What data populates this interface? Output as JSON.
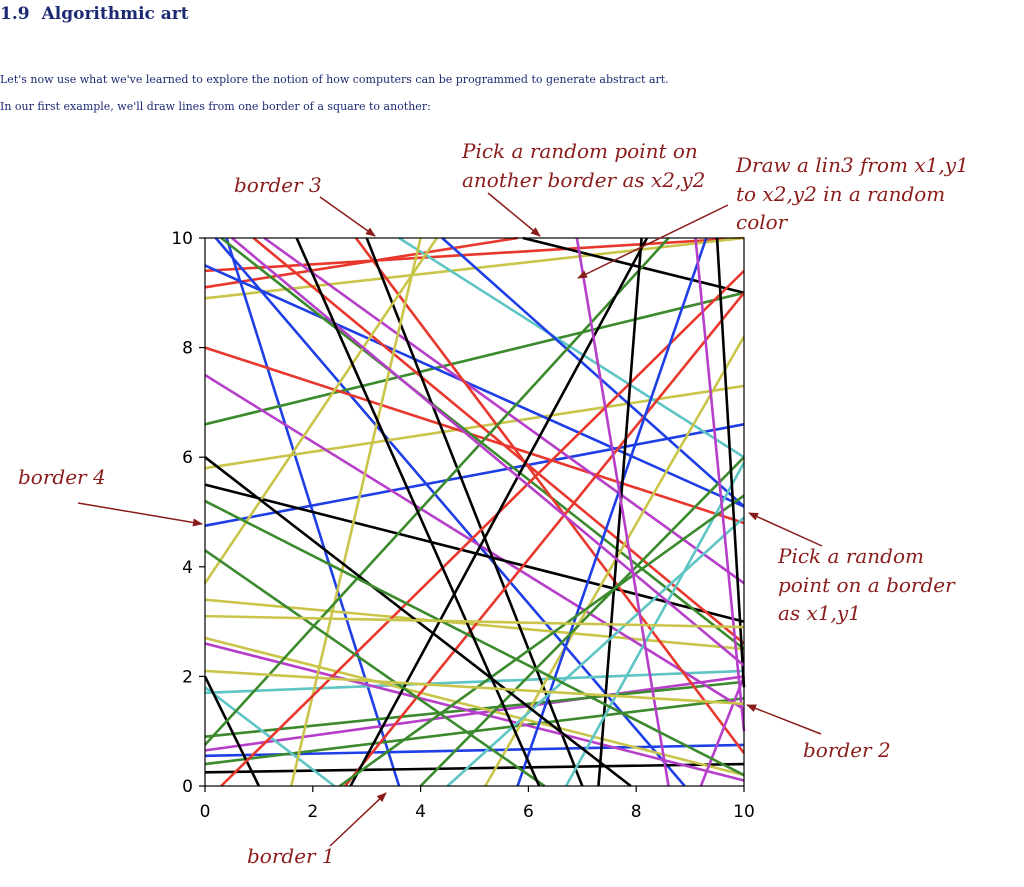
{
  "section": {
    "number": "1.9",
    "title": "Algorithmic art"
  },
  "paragraphs": [
    "Let's now use what we've learned to explore the notion of how computers can be programmed to generate abstract art.",
    "In our first example, we'll draw lines from one border of a square to another:"
  ],
  "annotations": {
    "border1": "border 1",
    "border2": "border 2",
    "border3": "border 3",
    "border4": "border 4",
    "pick_first": [
      "Pick a random",
      "point on a border",
      "as x1,y1"
    ],
    "pick_second": [
      "Pick a random point on",
      "another border as x2,y2"
    ],
    "draw_line": [
      "Draw a lin3 from x1,y1",
      "to x2,y2 in a random",
      "color"
    ]
  },
  "colors": {
    "text": "#1d2a73",
    "annotation": "#8a1c1c",
    "line_palette": {
      "r": "#e8382d",
      "g": "#3c8a2e",
      "b": "#1f3fe6",
      "k": "#000000",
      "m": "#b63fc9",
      "c": "#5ec4c4",
      "y": "#c9c54a"
    }
  },
  "chart_data": {
    "type": "line",
    "xlim": [
      0,
      10
    ],
    "ylim": [
      0,
      10
    ],
    "xticks": [
      "0",
      "2",
      "4",
      "6",
      "8",
      "10"
    ],
    "yticks": [
      "0",
      "2",
      "4",
      "6",
      "8",
      "10"
    ],
    "grid": false,
    "segments": [
      {
        "x1": 0,
        "y1": 9.4,
        "x2": 10,
        "y2": 10,
        "color": "r"
      },
      {
        "x1": 0,
        "y1": 9.1,
        "x2": 5.8,
        "y2": 10,
        "color": "r"
      },
      {
        "x1": 0,
        "y1": 8.9,
        "x2": 10,
        "y2": 10,
        "color": "y"
      },
      {
        "x1": 0.4,
        "y1": 10,
        "x2": 3.6,
        "y2": 0,
        "color": "b"
      },
      {
        "x1": 0.2,
        "y1": 10,
        "x2": 8.9,
        "y2": 0,
        "color": "b"
      },
      {
        "x1": 0,
        "y1": 4.75,
        "x2": 10,
        "y2": 6.6,
        "color": "b"
      },
      {
        "x1": 0,
        "y1": 0.25,
        "x2": 10,
        "y2": 0.4,
        "color": "k"
      },
      {
        "x1": 0,
        "y1": 0.55,
        "x2": 10,
        "y2": 0.75,
        "color": "b"
      },
      {
        "x1": 0,
        "y1": 0.65,
        "x2": 10,
        "y2": 2.0,
        "color": "m"
      },
      {
        "x1": 0,
        "y1": 1.7,
        "x2": 10,
        "y2": 2.1,
        "color": "c"
      },
      {
        "x1": 0,
        "y1": 0.9,
        "x2": 10,
        "y2": 1.9,
        "color": "g"
      },
      {
        "x1": 0,
        "y1": 0.4,
        "x2": 10,
        "y2": 1.6,
        "color": "g"
      },
      {
        "x1": 0,
        "y1": 5.8,
        "x2": 10,
        "y2": 7.3,
        "color": "y"
      },
      {
        "x1": 0,
        "y1": 6.6,
        "x2": 10,
        "y2": 9.0,
        "color": "g"
      },
      {
        "x1": 0,
        "y1": 3.4,
        "x2": 10,
        "y2": 2.5,
        "color": "y"
      },
      {
        "x1": 0,
        "y1": 8.0,
        "x2": 10,
        "y2": 4.8,
        "color": "r"
      },
      {
        "x1": 0,
        "y1": 9.5,
        "x2": 10,
        "y2": 5.1,
        "color": "b"
      },
      {
        "x1": 0,
        "y1": 7.5,
        "x2": 10,
        "y2": 1.4,
        "color": "m"
      },
      {
        "x1": 0,
        "y1": 2.7,
        "x2": 10,
        "y2": 0.2,
        "color": "y"
      },
      {
        "x1": 0,
        "y1": 5.5,
        "x2": 10,
        "y2": 3.0,
        "color": "k"
      },
      {
        "x1": 0.3,
        "y1": 10,
        "x2": 10,
        "y2": 2.5,
        "color": "g"
      },
      {
        "x1": 0.9,
        "y1": 10,
        "x2": 10,
        "y2": 2.6,
        "color": "r"
      },
      {
        "x1": 1.1,
        "y1": 10,
        "x2": 10,
        "y2": 3.7,
        "color": "m"
      },
      {
        "x1": 2.8,
        "y1": 10,
        "x2": 10,
        "y2": 0.6,
        "color": "r"
      },
      {
        "x1": 3.0,
        "y1": 10,
        "x2": 7.0,
        "y2": 0,
        "color": "k"
      },
      {
        "x1": 3.6,
        "y1": 10,
        "x2": 10,
        "y2": 6.0,
        "color": "c"
      },
      {
        "x1": 5.9,
        "y1": 10,
        "x2": 10,
        "y2": 9.0,
        "color": "k"
      },
      {
        "x1": 4.4,
        "y1": 10,
        "x2": 10,
        "y2": 5.1,
        "color": "b"
      },
      {
        "x1": 0,
        "y1": 2.6,
        "x2": 10,
        "y2": 0.1,
        "color": "m"
      },
      {
        "x1": 0,
        "y1": 1.8,
        "x2": 2.4,
        "y2": 0,
        "color": "c"
      },
      {
        "x1": 1.0,
        "y1": 0,
        "x2": 0,
        "y2": 2.0,
        "color": "k"
      },
      {
        "x1": 0,
        "y1": 3.7,
        "x2": 4.3,
        "y2": 10,
        "color": "y"
      },
      {
        "x1": 1.6,
        "y1": 0,
        "x2": 4.0,
        "y2": 10,
        "color": "y"
      },
      {
        "x1": 2.6,
        "y1": 0,
        "x2": 10,
        "y2": 9.0,
        "color": "r"
      },
      {
        "x1": 0.3,
        "y1": 0,
        "x2": 10,
        "y2": 9.4,
        "color": "r"
      },
      {
        "x1": 0,
        "y1": 0.75,
        "x2": 8.6,
        "y2": 10,
        "color": "g"
      },
      {
        "x1": 2.7,
        "y1": 0,
        "x2": 8.2,
        "y2": 10,
        "color": "k"
      },
      {
        "x1": 5.2,
        "y1": 0,
        "x2": 10,
        "y2": 8.2,
        "color": "y"
      },
      {
        "x1": 5.8,
        "y1": 0,
        "x2": 9.3,
        "y2": 10,
        "color": "b"
      },
      {
        "x1": 7.3,
        "y1": 0,
        "x2": 8.1,
        "y2": 10,
        "color": "k"
      },
      {
        "x1": 6.7,
        "y1": 0,
        "x2": 10,
        "y2": 5.9,
        "color": "c"
      },
      {
        "x1": 4.5,
        "y1": 0,
        "x2": 10,
        "y2": 4.9,
        "color": "c"
      },
      {
        "x1": 4.0,
        "y1": 0,
        "x2": 10,
        "y2": 6.0,
        "color": "g"
      },
      {
        "x1": 2.5,
        "y1": 0,
        "x2": 10,
        "y2": 5.3,
        "color": "g"
      },
      {
        "x1": 9.2,
        "y1": 0,
        "x2": 10,
        "y2": 2.0,
        "color": "m"
      },
      {
        "x1": 8.6,
        "y1": 0,
        "x2": 6.9,
        "y2": 10,
        "color": "m"
      },
      {
        "x1": 10,
        "y1": 1.0,
        "x2": 9.1,
        "y2": 10,
        "color": "m"
      },
      {
        "x1": 10,
        "y1": 1.8,
        "x2": 9.5,
        "y2": 10,
        "color": "k"
      },
      {
        "x1": 0,
        "y1": 6.0,
        "x2": 7.9,
        "y2": 0,
        "color": "k"
      },
      {
        "x1": 0,
        "y1": 5.2,
        "x2": 10,
        "y2": 0.2,
        "color": "g"
      },
      {
        "x1": 0,
        "y1": 4.3,
        "x2": 6.3,
        "y2": 0,
        "color": "g"
      },
      {
        "x1": 0.5,
        "y1": 10,
        "x2": 10,
        "y2": 2.2,
        "color": "m"
      },
      {
        "x1": 1.7,
        "y1": 10,
        "x2": 6.2,
        "y2": 0,
        "color": "k"
      },
      {
        "x1": 0,
        "y1": 2.1,
        "x2": 10,
        "y2": 1.5,
        "color": "y"
      },
      {
        "x1": 0,
        "y1": 3.1,
        "x2": 10,
        "y2": 2.9,
        "color": "y"
      }
    ]
  }
}
